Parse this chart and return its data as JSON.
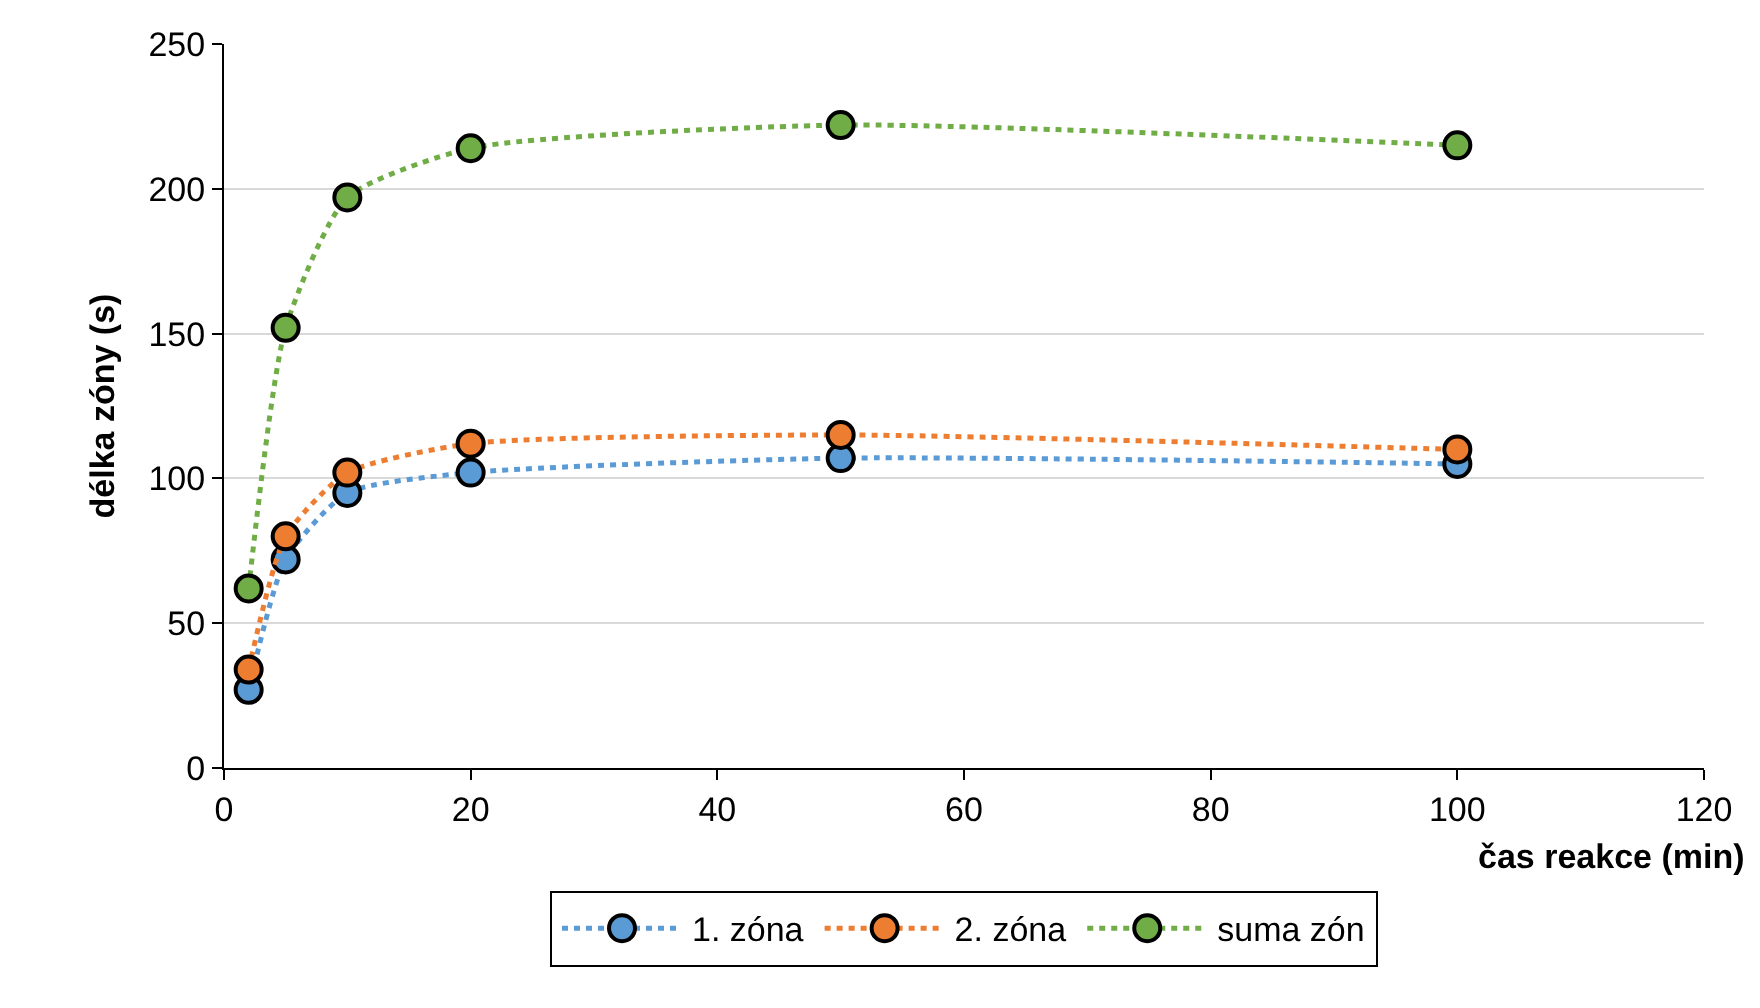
{
  "chart_data": {
    "type": "line",
    "xlabel": "čas reakce (min)",
    "ylabel": "délka zóny (s)",
    "x": [
      2,
      5,
      10,
      20,
      50,
      100
    ],
    "series": [
      {
        "name": "1. zóna",
        "color": "#5b9bd5",
        "values": [
          27,
          72,
          95,
          102,
          107,
          105
        ]
      },
      {
        "name": "2. zóna",
        "color": "#ed7d31",
        "values": [
          34,
          80,
          102,
          112,
          115,
          110
        ]
      },
      {
        "name": "suma zón",
        "color": "#70ad47",
        "values": [
          62,
          152,
          197,
          214,
          222,
          215
        ]
      }
    ],
    "xlim": [
      0,
      120
    ],
    "xticks": [
      0,
      20,
      40,
      60,
      80,
      100,
      120
    ],
    "ylim": [
      0,
      250
    ],
    "yticks": [
      0,
      50,
      100,
      150,
      200,
      250
    ],
    "grid": "y",
    "legend": "bottom",
    "marker": "circle",
    "line_style": "dotted"
  }
}
